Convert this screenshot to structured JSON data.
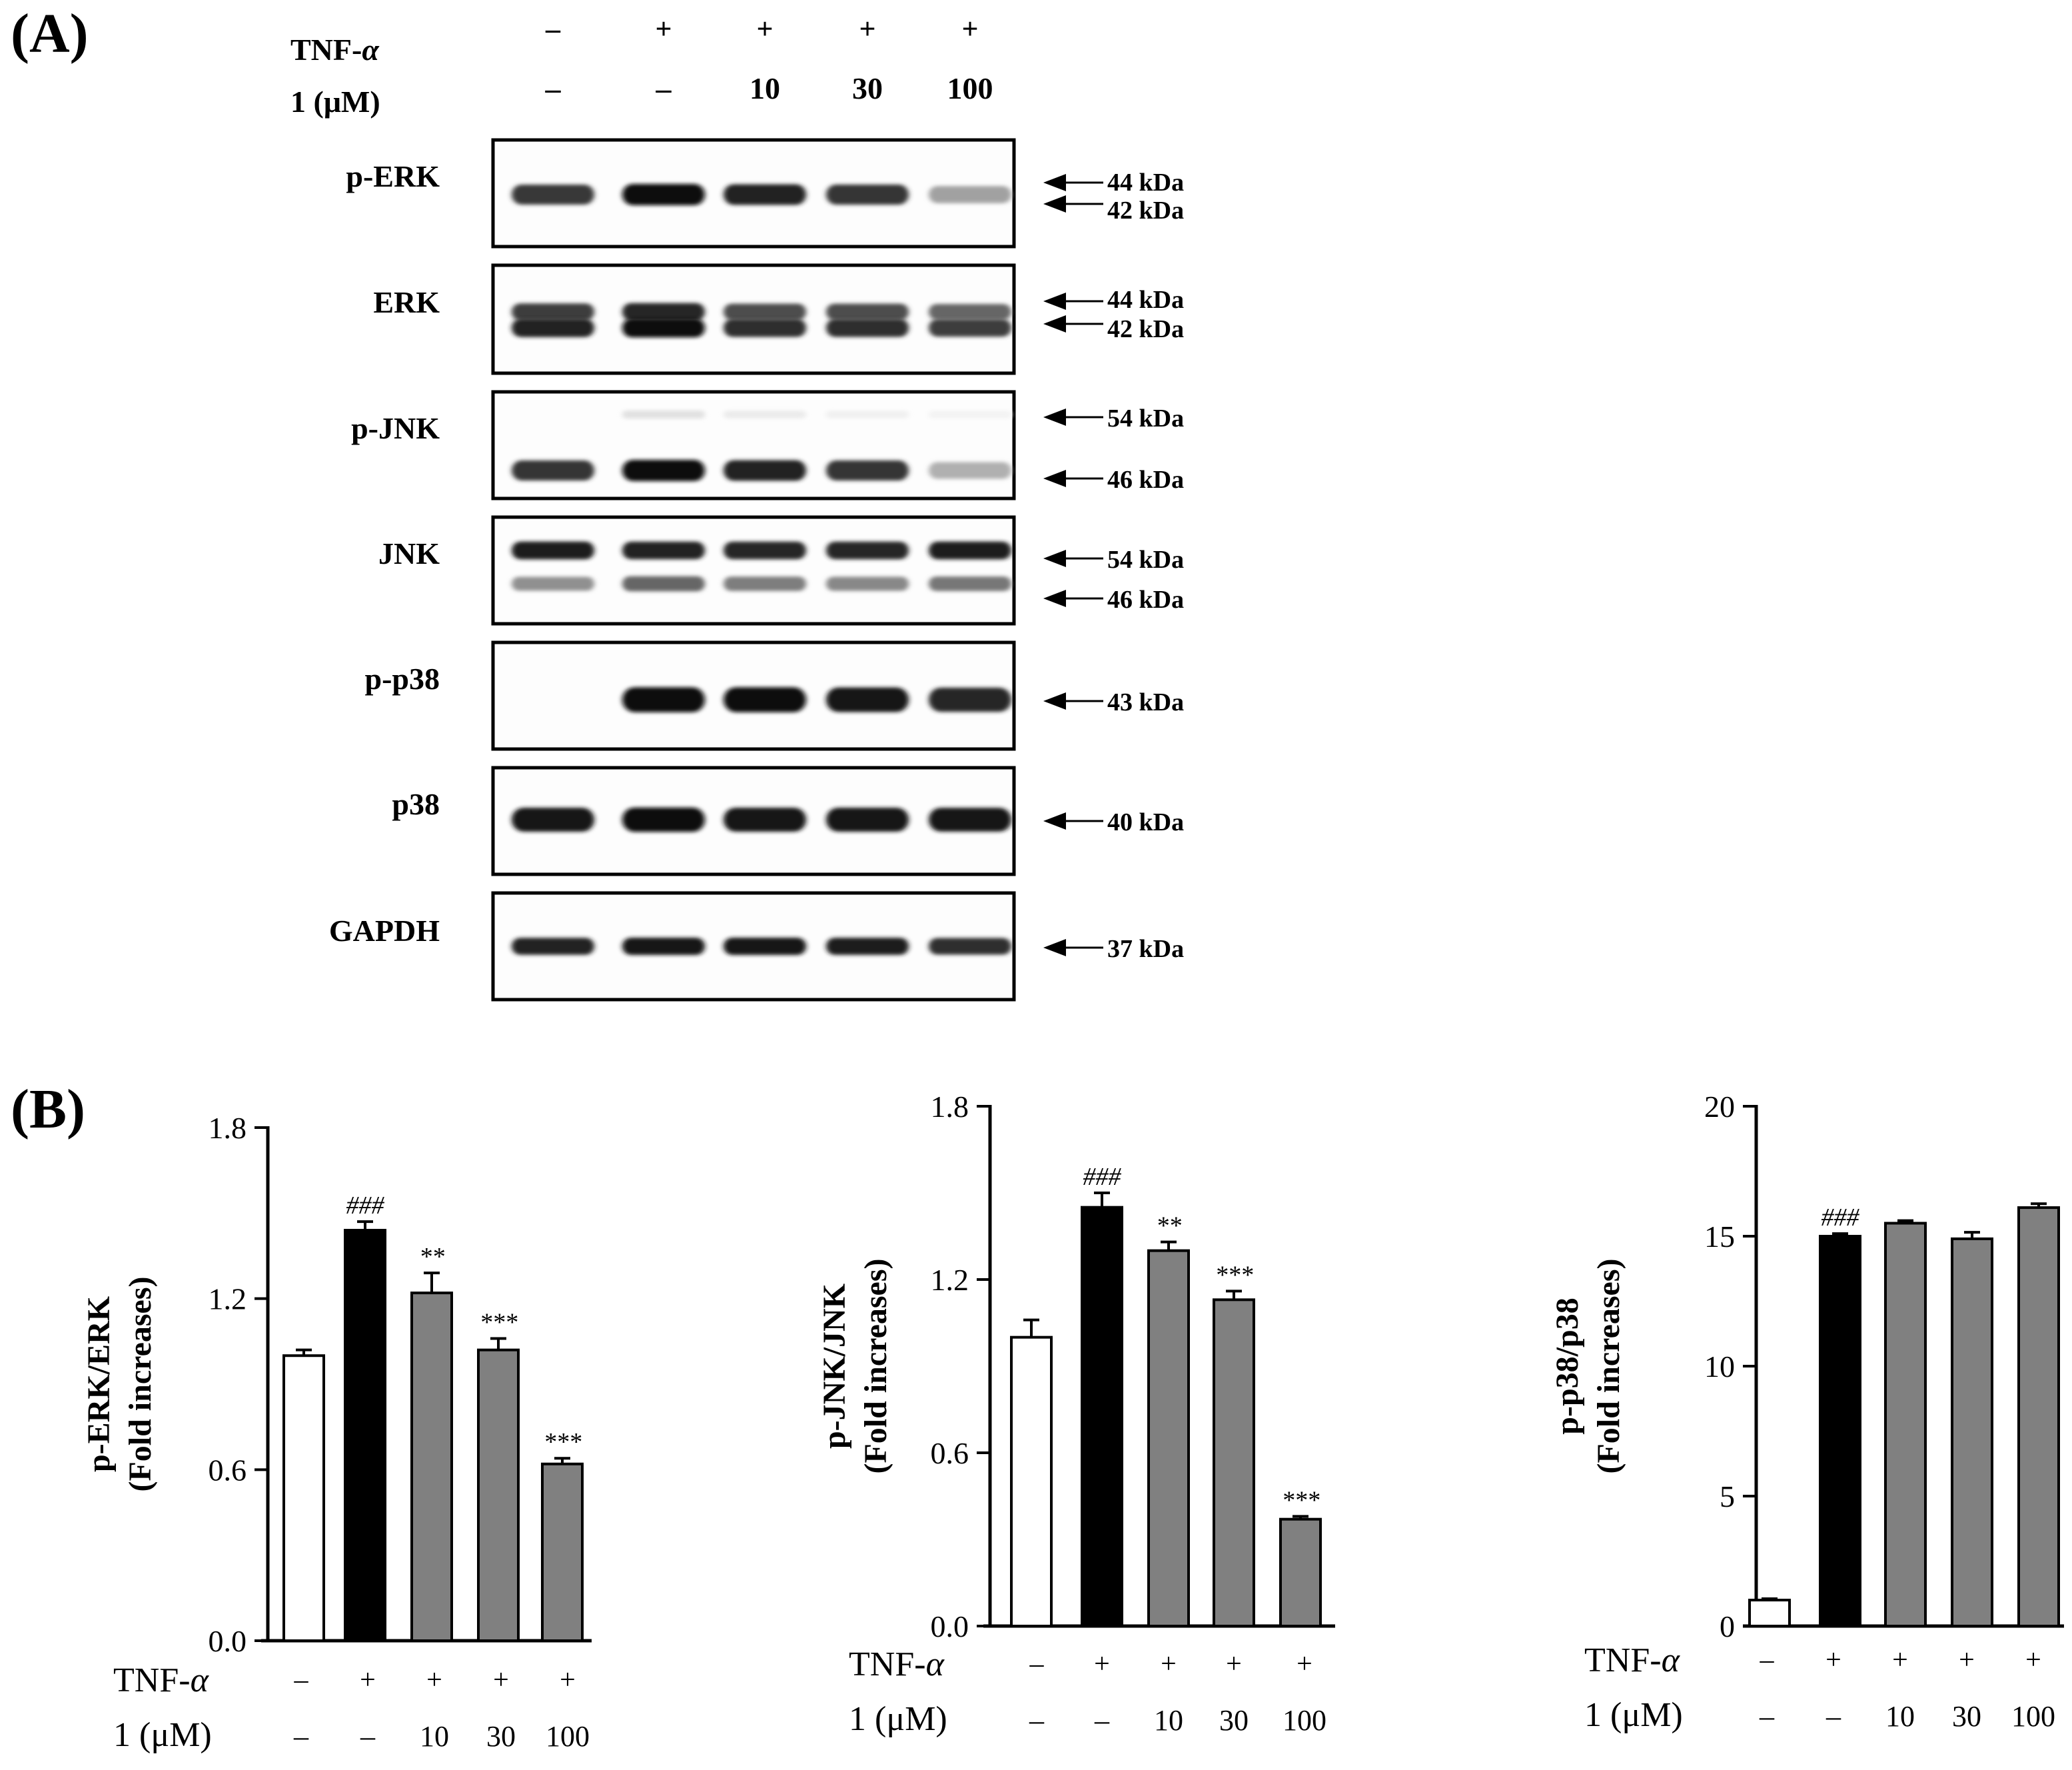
{
  "panel_labels": {
    "a": "(A)",
    "b": "(B)"
  },
  "treatment": {
    "tnf_label": "TNF-",
    "tnf_greek": "α",
    "dose_label": "1 (μM)",
    "tnf_row": [
      "–",
      "+",
      "+",
      "+",
      "+"
    ],
    "dose_row": [
      "–",
      "–",
      "10",
      "30",
      "100"
    ]
  },
  "western_blot": {
    "blots": [
      {
        "label": "p-ERK",
        "markers": [
          "44 kDa",
          "42 kDa"
        ],
        "bands": [
          {
            "intensity": [
              0.8,
              1.0,
              0.9,
              0.82,
              0.38
            ],
            "thickness": 1.0
          }
        ]
      },
      {
        "label": "ERK",
        "markers": [
          "44 kDa",
          "42 kDa"
        ],
        "bands": [
          {
            "intensity": [
              0.78,
              0.88,
              0.72,
              0.72,
              0.62
            ],
            "thickness": 0.8
          },
          {
            "intensity": [
              0.9,
              0.98,
              0.85,
              0.85,
              0.78
            ],
            "thickness": 0.85
          }
        ]
      },
      {
        "label": "p-JNK",
        "markers": [
          "54 kDa",
          "46 kDa"
        ],
        "bands": [
          {
            "intensity": [
              0.0,
              0.12,
              0.08,
              0.06,
              0.05
            ],
            "thickness": 0.5
          },
          {
            "intensity": [
              0.82,
              1.0,
              0.9,
              0.82,
              0.32
            ],
            "thickness": 1.0
          }
        ]
      },
      {
        "label": "JNK",
        "markers": [
          "54 kDa",
          "46 kDa"
        ],
        "bands": [
          {
            "intensity": [
              0.92,
              0.9,
              0.88,
              0.88,
              0.92
            ],
            "thickness": 0.8
          },
          {
            "intensity": [
              0.45,
              0.62,
              0.52,
              0.48,
              0.55
            ],
            "thickness": 0.75
          }
        ]
      },
      {
        "label": "p-p38",
        "markers": [
          "43 kDa"
        ],
        "bands": [
          {
            "intensity": [
              0.0,
              1.0,
              1.0,
              0.95,
              0.88
            ],
            "thickness": 1.25
          }
        ]
      },
      {
        "label": "p38",
        "markers": [
          "40 kDa"
        ],
        "bands": [
          {
            "intensity": [
              0.95,
              1.0,
              0.95,
              0.95,
              0.93
            ],
            "thickness": 1.2
          }
        ]
      },
      {
        "label": "GAPDH",
        "markers": [
          "37 kDa"
        ],
        "bands": [
          {
            "intensity": [
              0.9,
              0.95,
              0.95,
              0.92,
              0.85
            ],
            "thickness": 0.75
          }
        ]
      }
    ]
  },
  "chart_data": [
    {
      "type": "bar",
      "ylabel_line1": "p-ERK/ERK",
      "ylabel_line2": "(Fold increases)",
      "ylim": [
        0,
        1.8
      ],
      "yticks": [
        0.0,
        0.6,
        1.2,
        1.8
      ],
      "ytick_labels": [
        "0.0",
        "0.6",
        "1.2",
        "1.8"
      ],
      "values": [
        1.0,
        1.44,
        1.22,
        1.02,
        0.62
      ],
      "errors": [
        0.02,
        0.03,
        0.07,
        0.04,
        0.02
      ],
      "fills": [
        "#ffffff",
        "#000000",
        "#808080",
        "#808080",
        "#808080"
      ],
      "annotations": [
        "",
        "###",
        "**",
        "***",
        "***"
      ]
    },
    {
      "type": "bar",
      "ylabel_line1": "p-JNK/JNK",
      "ylabel_line2": "(Fold increases)",
      "ylim": [
        0,
        1.8
      ],
      "yticks": [
        0.0,
        0.6,
        1.2,
        1.8
      ],
      "ytick_labels": [
        "0.0",
        "0.6",
        "1.2",
        "1.8"
      ],
      "values": [
        1.0,
        1.45,
        1.3,
        1.13,
        0.37
      ],
      "errors": [
        0.06,
        0.05,
        0.03,
        0.03,
        0.01
      ],
      "fills": [
        "#ffffff",
        "#000000",
        "#808080",
        "#808080",
        "#808080"
      ],
      "annotations": [
        "",
        "###",
        "**",
        "***",
        "***"
      ]
    },
    {
      "type": "bar",
      "ylabel_line1": "p-p38/p38",
      "ylabel_line2": "(Fold increases)",
      "ylim": [
        0,
        20
      ],
      "yticks": [
        0,
        5,
        10,
        15,
        20
      ],
      "ytick_labels": [
        "0",
        "5",
        "10",
        "15",
        "20"
      ],
      "values": [
        1.0,
        15.0,
        15.5,
        14.9,
        16.1
      ],
      "errors": [
        0.05,
        0.1,
        0.1,
        0.25,
        0.15
      ],
      "fills": [
        "#ffffff",
        "#000000",
        "#808080",
        "#808080",
        "#808080"
      ],
      "annotations": [
        "",
        "###",
        "",
        "",
        ""
      ]
    }
  ]
}
